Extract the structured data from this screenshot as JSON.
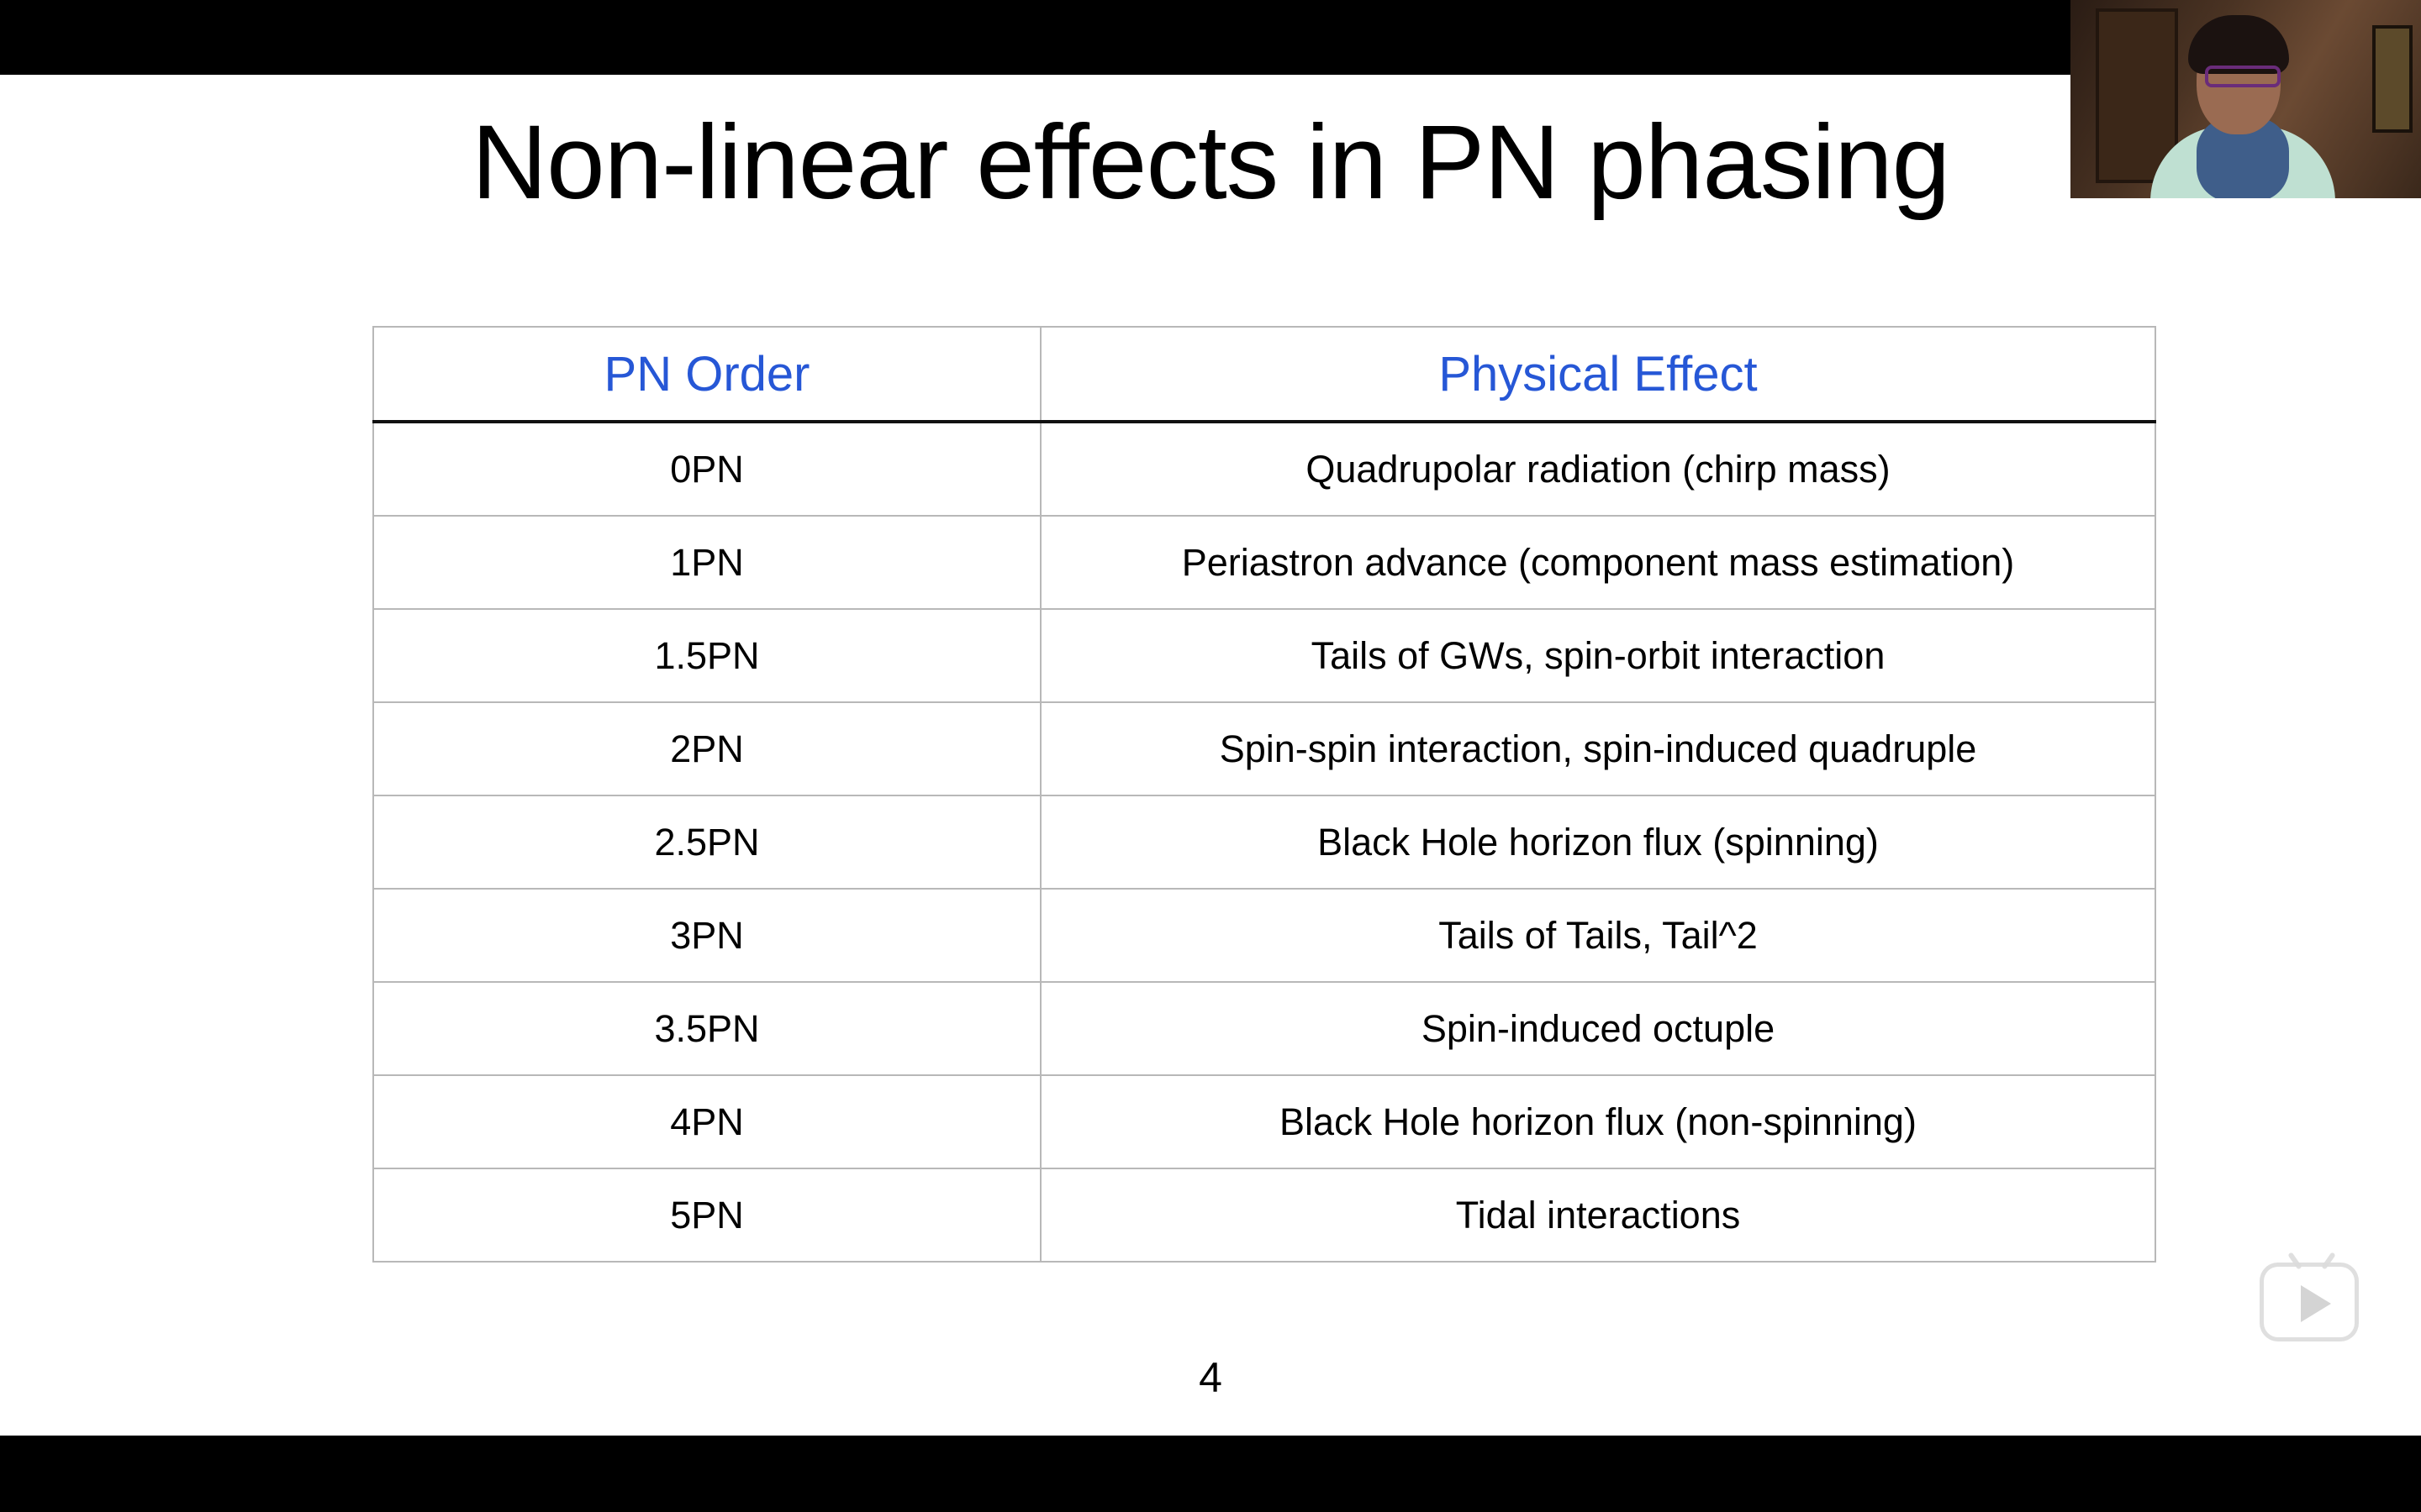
{
  "slide": {
    "title": "Non-linear effects in PN phasing",
    "page_number": "4",
    "table": {
      "headers": [
        "PN Order",
        "Physical Effect"
      ],
      "header_color": "#2657d6",
      "rows": [
        [
          "0PN",
          "Quadrupolar radiation (chirp mass)"
        ],
        [
          "1PN",
          "Periastron advance (component mass estimation)"
        ],
        [
          "1.5PN",
          "Tails of GWs, spin-orbit interaction"
        ],
        [
          "2PN",
          "Spin-spin interaction, spin-induced quadruple"
        ],
        [
          "2.5PN",
          "Black Hole horizon flux (spinning)"
        ],
        [
          "3PN",
          "Tails of Tails, Tail^2"
        ],
        [
          "3.5PN",
          "Spin-induced octuple"
        ],
        [
          "4PN",
          "Black Hole horizon flux (non-spinning)"
        ],
        [
          "5PN",
          "Tidal interactions"
        ]
      ]
    }
  },
  "overlay": {
    "webcam_icon": "presenter-webcam",
    "play_icon": "play-icon"
  }
}
